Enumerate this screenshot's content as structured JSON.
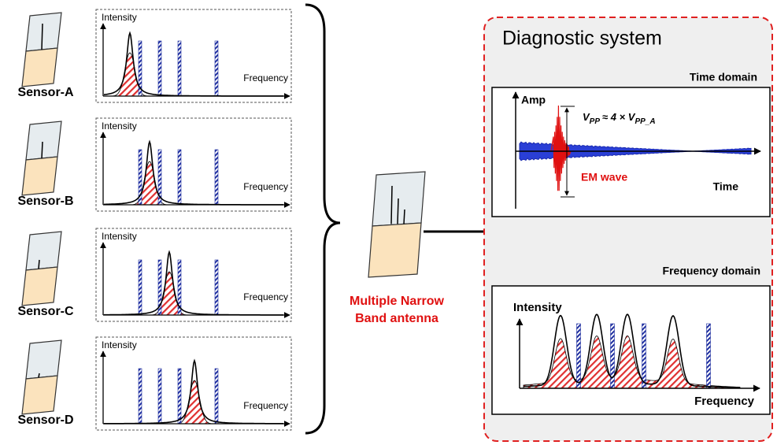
{
  "sensors": [
    {
      "label": "Sensor-A",
      "y_label": "Intensity",
      "x_label": "Frequency"
    },
    {
      "label": "Sensor-B",
      "y_label": "Intensity",
      "x_label": "Frequency"
    },
    {
      "label": "Sensor-C",
      "y_label": "Intensity",
      "x_label": "Frequency"
    },
    {
      "label": "Sensor-D",
      "y_label": "Intensity",
      "x_label": "Frequency"
    }
  ],
  "antenna": {
    "label_lines": [
      "Multiple Narrow",
      "Band antenna"
    ]
  },
  "diagnostic": {
    "title": "Diagnostic system",
    "time_domain": {
      "title": "Time domain",
      "y_label": "Amp",
      "x_label": "Time",
      "signal_label": "EM wave",
      "annotation": [
        "V",
        "PP",
        "≈ 4 × V",
        "PP_A"
      ]
    },
    "frequency_domain": {
      "title": "Frequency domain",
      "y_label": "Intensity",
      "x_label": "Frequency"
    }
  }
}
